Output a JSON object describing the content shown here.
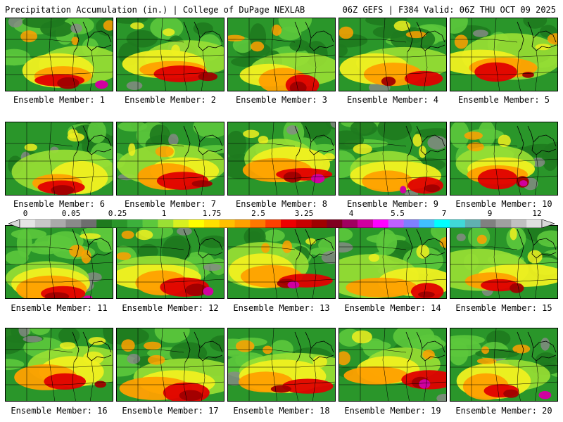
{
  "header": {
    "title": "Precipitation Accumulation (in.) | College of DuPage NEXLAB",
    "run_info": "06Z GEFS | F384 Valid: 06Z THU OCT 09 2025"
  },
  "panels": [
    {
      "label": "Ensemble Member: 1"
    },
    {
      "label": "Ensemble Member: 2"
    },
    {
      "label": "Ensemble Member: 3"
    },
    {
      "label": "Ensemble Member: 4"
    },
    {
      "label": "Ensemble Member: 5"
    },
    {
      "label": "Ensemble Member: 6"
    },
    {
      "label": "Ensemble Member: 7"
    },
    {
      "label": "Ensemble Member: 8"
    },
    {
      "label": "Ensemble Member: 9"
    },
    {
      "label": "Ensemble Member: 10"
    },
    {
      "label": "Ensemble Member: 11"
    },
    {
      "label": "Ensemble Member: 12"
    },
    {
      "label": "Ensemble Member: 13"
    },
    {
      "label": "Ensemble Member: 14"
    },
    {
      "label": "Ensemble Member: 15"
    },
    {
      "label": "Ensemble Member: 16"
    },
    {
      "label": "Ensemble Member: 17"
    },
    {
      "label": "Ensemble Member: 18"
    },
    {
      "label": "Ensemble Member: 19"
    },
    {
      "label": "Ensemble Member: 20"
    }
  ],
  "colorbar": {
    "tick_labels": [
      "0",
      "0.05",
      "0.25",
      "1",
      "1.75",
      "2.5",
      "3.25",
      "4",
      "5.5",
      "7",
      "9",
      "12"
    ],
    "colors": [
      "#e4e4e4",
      "#c8c8c8",
      "#aaaaaa",
      "#8a8a8a",
      "#6e6e6e",
      "#1e7a1e",
      "#2a962a",
      "#3cb03c",
      "#5cc83c",
      "#9ae034",
      "#d8f020",
      "#ffff00",
      "#ffe000",
      "#ffc000",
      "#ffa000",
      "#ff7800",
      "#ff4000",
      "#ee0000",
      "#c80000",
      "#a00000",
      "#800020",
      "#a00060",
      "#d000a0",
      "#ff00ff",
      "#c060ff",
      "#8080ff",
      "#40c0ff",
      "#00ffff",
      "#40d8d8",
      "#60b0b0",
      "#808080",
      "#a0a0a0",
      "#c0c0c0",
      "#e0e0e0"
    ]
  }
}
